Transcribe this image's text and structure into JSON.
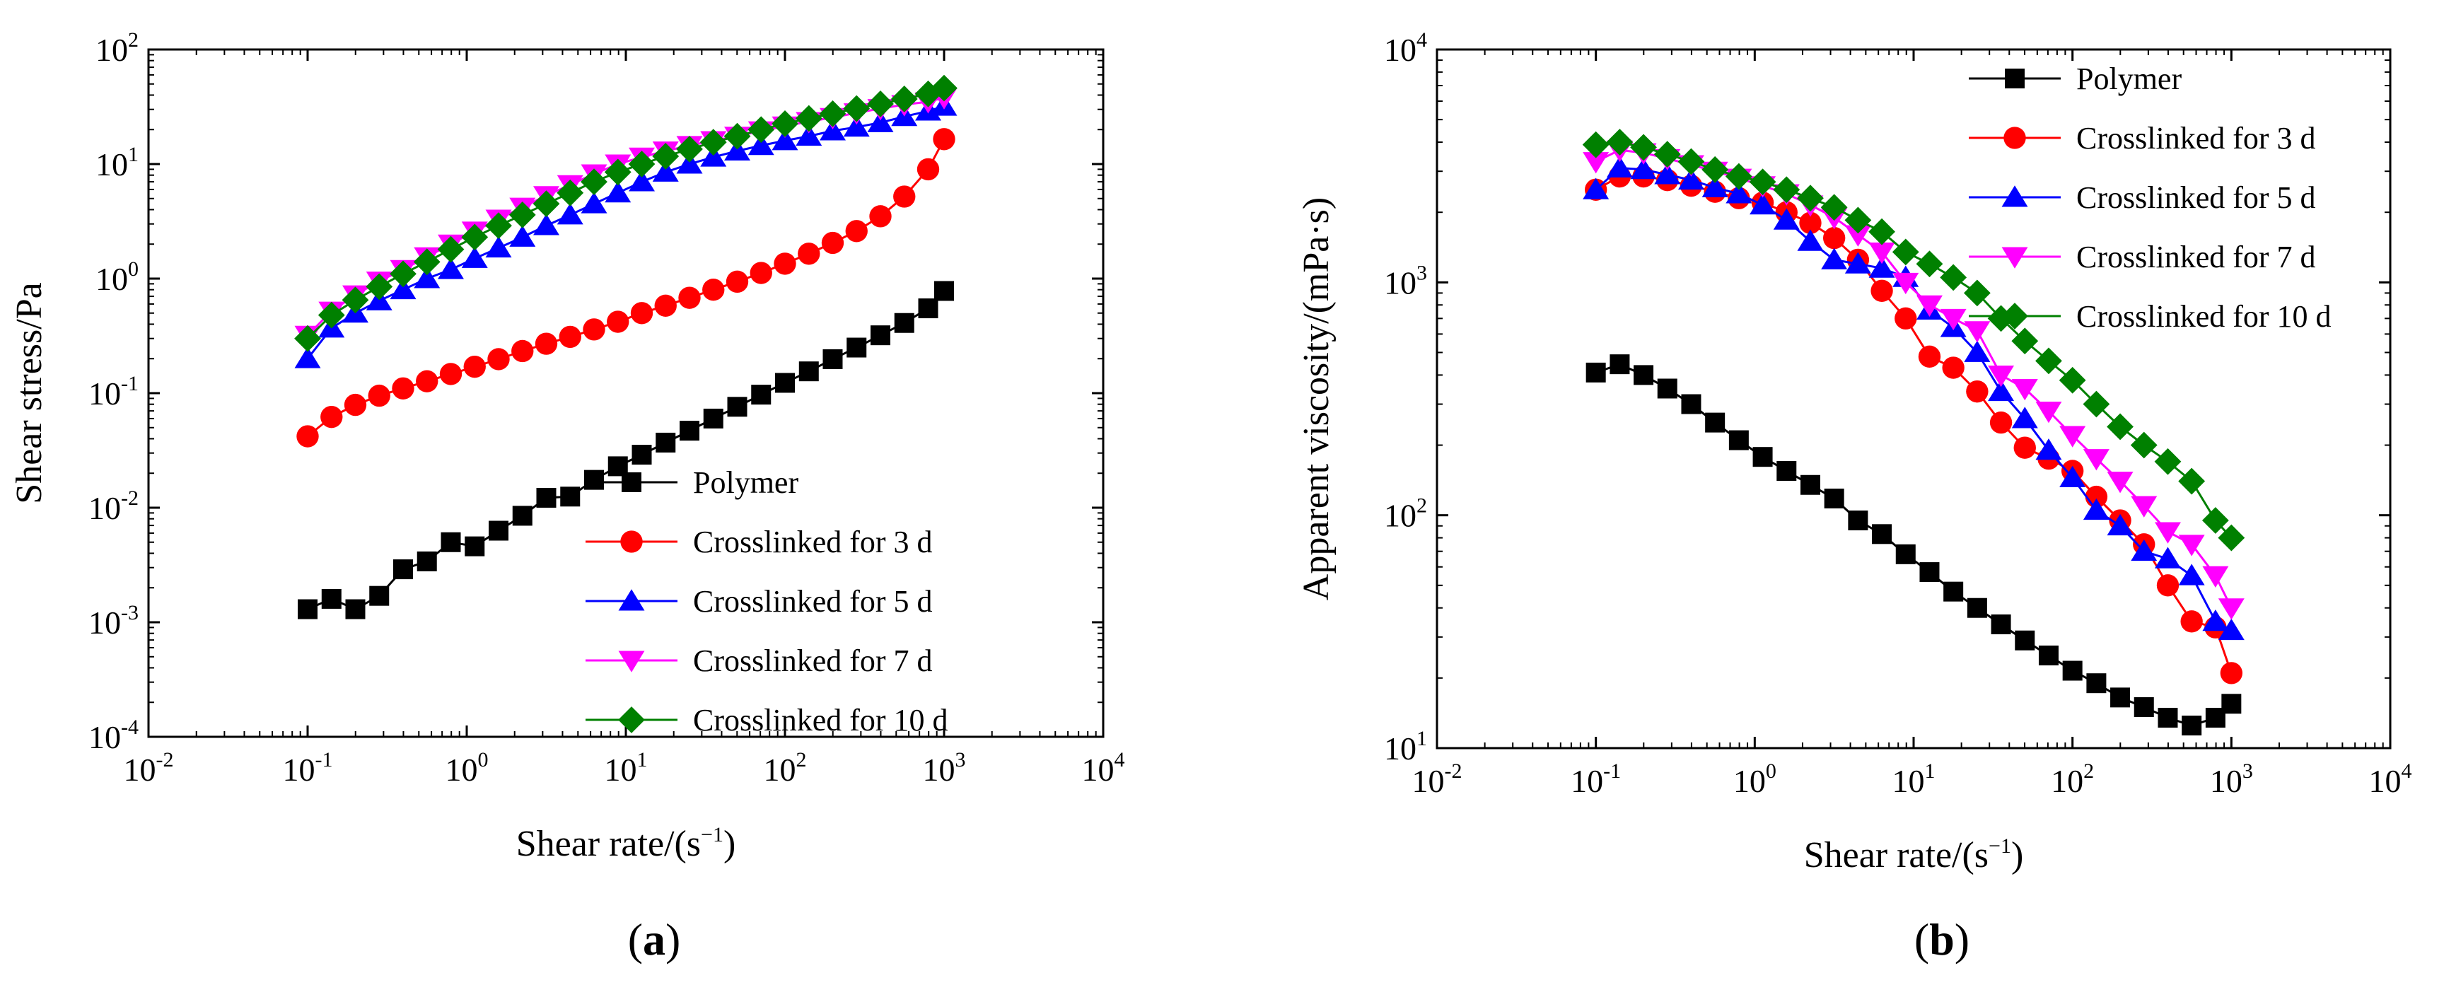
{
  "chart_data": [
    {
      "type": "scatter",
      "panel": "a",
      "panel_label": "a",
      "xlabel": "Shear rate/(s",
      "xlabel_exponent": "−1",
      "xlabel_close": ")",
      "ylabel": "Shear stress/Pa",
      "xscale": "log",
      "yscale": "log",
      "xlim": [
        0.01,
        10000
      ],
      "ylim": [
        0.0001,
        100
      ],
      "x_ticks": [
        {
          "value": 0.01,
          "base": "10",
          "exp": "-2"
        },
        {
          "value": 0.1,
          "base": "10",
          "exp": "-1"
        },
        {
          "value": 1,
          "base": "10",
          "exp": "0"
        },
        {
          "value": 10,
          "base": "10",
          "exp": "1"
        },
        {
          "value": 100,
          "base": "10",
          "exp": "2"
        },
        {
          "value": 1000,
          "base": "10",
          "exp": "3"
        },
        {
          "value": 10000,
          "base": "10",
          "exp": "4"
        }
      ],
      "y_ticks": [
        {
          "value": 0.0001,
          "base": "10",
          "exp": "-4"
        },
        {
          "value": 0.001,
          "base": "10",
          "exp": "-3"
        },
        {
          "value": 0.01,
          "base": "10",
          "exp": "-2"
        },
        {
          "value": 0.1,
          "base": "10",
          "exp": "-1"
        },
        {
          "value": 1,
          "base": "10",
          "exp": "0"
        },
        {
          "value": 10,
          "base": "10",
          "exp": "1"
        },
        {
          "value": 100,
          "base": "10",
          "exp": "2"
        }
      ],
      "legend_position": "lower-right",
      "x": [
        0.1,
        0.1413,
        0.1995,
        0.2818,
        0.3981,
        0.5623,
        0.7943,
        1.122,
        1.585,
        2.239,
        3.162,
        4.467,
        6.31,
        8.913,
        12.59,
        17.78,
        25.12,
        35.48,
        50.12,
        70.79,
        100,
        141.3,
        199.5,
        281.8,
        398.1,
        562.3,
        794.3,
        1000
      ],
      "series": [
        {
          "name": "Polymer",
          "color": "#000000",
          "marker": "square",
          "values": [
            0.0013,
            0.0016,
            0.0013,
            0.0017,
            0.0029,
            0.0034,
            0.005,
            0.0046,
            0.0063,
            0.0085,
            0.0122,
            0.0125,
            0.0175,
            0.023,
            0.029,
            0.037,
            0.047,
            0.06,
            0.076,
            0.097,
            0.123,
            0.155,
            0.198,
            0.25,
            0.32,
            0.41,
            0.55,
            0.78
          ]
        },
        {
          "name": "Crosslinked for 3 d",
          "color": "#ff0000",
          "marker": "circle",
          "values": [
            0.042,
            0.062,
            0.079,
            0.095,
            0.11,
            0.127,
            0.147,
            0.17,
            0.198,
            0.233,
            0.27,
            0.31,
            0.36,
            0.42,
            0.5,
            0.58,
            0.68,
            0.8,
            0.94,
            1.12,
            1.35,
            1.65,
            2.05,
            2.6,
            3.5,
            5.2,
            9.0,
            16.5
          ]
        },
        {
          "name": "Crosslinked for 5 d",
          "color": "#0000ff",
          "marker": "triangle-up",
          "values": [
            0.2,
            0.37,
            0.5,
            0.64,
            0.8,
            1.0,
            1.2,
            1.5,
            1.85,
            2.3,
            2.9,
            3.6,
            4.5,
            5.6,
            7.0,
            8.5,
            10,
            11.5,
            13,
            14.5,
            16,
            17.5,
            19.5,
            21,
            23,
            26,
            29,
            32
          ]
        },
        {
          "name": "Crosslinked for 7 d",
          "color": "#ff00ff",
          "marker": "triangle-down",
          "values": [
            0.32,
            0.52,
            0.72,
            0.95,
            1.2,
            1.55,
            2.0,
            2.6,
            3.3,
            4.2,
            5.3,
            6.6,
            8.2,
            10,
            11.5,
            13,
            14.5,
            16,
            17.5,
            19.5,
            21.5,
            23.5,
            25.5,
            28,
            30.5,
            33,
            35,
            38
          ]
        },
        {
          "name": "Crosslinked for 10 d",
          "color": "#008000",
          "marker": "diamond",
          "values": [
            0.3,
            0.48,
            0.65,
            0.85,
            1.1,
            1.4,
            1.8,
            2.3,
            2.9,
            3.6,
            4.5,
            5.6,
            7.0,
            8.5,
            10,
            11.7,
            13.5,
            15.5,
            17.5,
            20,
            22.5,
            25,
            27.5,
            30.5,
            33.5,
            37,
            41,
            46
          ]
        }
      ]
    },
    {
      "type": "scatter",
      "panel": "b",
      "panel_label": "b",
      "xlabel": "Shear rate/(s",
      "xlabel_exponent": "−1",
      "xlabel_close": ")",
      "ylabel": "Apparent viscosity/(mPa·s)",
      "xscale": "log",
      "yscale": "log",
      "xlim": [
        0.01,
        10000
      ],
      "ylim": [
        10,
        10000
      ],
      "x_ticks": [
        {
          "value": 0.01,
          "base": "10",
          "exp": "-2"
        },
        {
          "value": 0.1,
          "base": "10",
          "exp": "-1"
        },
        {
          "value": 1,
          "base": "10",
          "exp": "0"
        },
        {
          "value": 10,
          "base": "10",
          "exp": "1"
        },
        {
          "value": 100,
          "base": "10",
          "exp": "2"
        },
        {
          "value": 1000,
          "base": "10",
          "exp": "3"
        },
        {
          "value": 10000,
          "base": "10",
          "exp": "4"
        }
      ],
      "y_ticks": [
        {
          "value": 10,
          "base": "10",
          "exp": "1"
        },
        {
          "value": 100,
          "base": "10",
          "exp": "2"
        },
        {
          "value": 1000,
          "base": "10",
          "exp": "3"
        },
        {
          "value": 10000,
          "base": "10",
          "exp": "4"
        }
      ],
      "legend_position": "top-right",
      "x": [
        0.1,
        0.1413,
        0.1995,
        0.2818,
        0.3981,
        0.5623,
        0.7943,
        1.122,
        1.585,
        2.239,
        3.162,
        4.467,
        6.31,
        8.913,
        12.59,
        17.78,
        25.12,
        35.48,
        50.12,
        70.79,
        100,
        141.3,
        199.5,
        281.8,
        398.1,
        562.3,
        794.3,
        1000
      ],
      "series": [
        {
          "name": "Polymer",
          "color": "#000000",
          "marker": "square",
          "values": [
            410,
            445,
            400,
            350,
            300,
            250,
            210,
            178,
            155,
            135,
            118,
            95,
            83,
            68,
            57,
            47,
            40,
            34,
            29,
            25,
            21.5,
            19,
            16.5,
            15,
            13.5,
            12.5,
            13.5,
            15.5
          ]
        },
        {
          "name": "Crosslinked for 3 d",
          "color": "#ff0000",
          "marker": "circle",
          "values": [
            2500,
            2850,
            2850,
            2750,
            2600,
            2450,
            2300,
            2200,
            2000,
            1800,
            1550,
            1250,
            920,
            700,
            480,
            430,
            340,
            250,
            195,
            175,
            155,
            120,
            95,
            75,
            50,
            35,
            33,
            21
          ]
        },
        {
          "name": "Crosslinked for 5 d",
          "color": "#0000ff",
          "marker": "triangle-up",
          "values": [
            2500,
            3100,
            3050,
            2900,
            2750,
            2550,
            2400,
            2150,
            1850,
            1500,
            1250,
            1200,
            1150,
            1050,
            760,
            640,
            500,
            340,
            260,
            190,
            145,
            105,
            90,
            70,
            65,
            55,
            35,
            32
          ]
        },
        {
          "name": "Crosslinked for 7 d",
          "color": "#ff00ff",
          "marker": "triangle-down",
          "values": [
            3300,
            3700,
            3600,
            3400,
            3200,
            3000,
            2800,
            2600,
            2400,
            2150,
            1900,
            1600,
            1350,
            1000,
            800,
            700,
            620,
            400,
            350,
            280,
            220,
            175,
            140,
            110,
            85,
            75,
            55,
            40
          ]
        },
        {
          "name": "Crosslinked for 10 d",
          "color": "#008000",
          "marker": "diamond",
          "values": [
            3900,
            4000,
            3800,
            3550,
            3300,
            3050,
            2850,
            2700,
            2500,
            2300,
            2100,
            1850,
            1650,
            1350,
            1200,
            1050,
            900,
            700,
            560,
            460,
            380,
            300,
            240,
            200,
            170,
            140,
            95,
            80
          ]
        }
      ]
    }
  ]
}
